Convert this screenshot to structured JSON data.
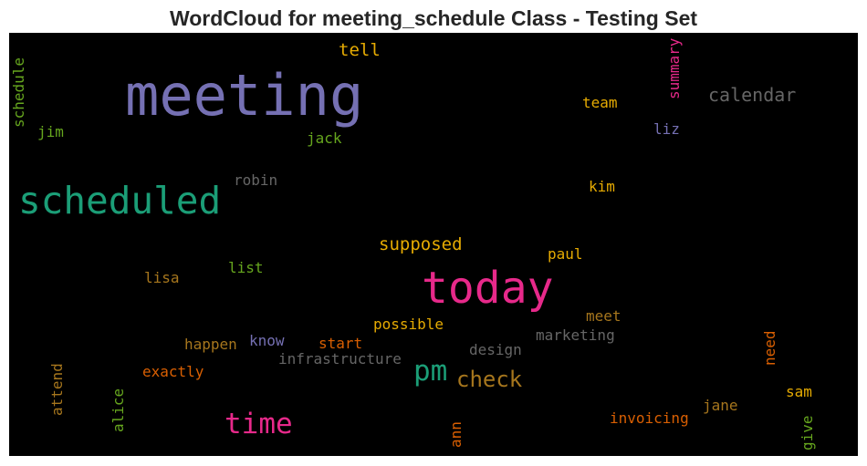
{
  "title": "WordCloud for meeting_schedule Class - Testing Set",
  "colors": {
    "purple": "#7570b3",
    "teal": "#1b9e77",
    "pink": "#e7298a",
    "orange": "#d95f02",
    "gold": "#e6ab02",
    "green": "#66a61e",
    "brown": "#a6761d",
    "gray": "#666666"
  },
  "words": [
    {
      "text": "meeting",
      "color": "#7570b3"
    },
    {
      "text": "scheduled",
      "color": "#1b9e77"
    },
    {
      "text": "today",
      "color": "#e7298a"
    },
    {
      "text": "time",
      "color": "#e7298a"
    },
    {
      "text": "pm",
      "color": "#1b9e77"
    },
    {
      "text": "check",
      "color": "#a6761d"
    },
    {
      "text": "calendar",
      "color": "#666666"
    },
    {
      "text": "supposed",
      "color": "#e6ab02"
    },
    {
      "text": "tell",
      "color": "#e6ab02"
    },
    {
      "text": "summary",
      "color": "#e7298a"
    },
    {
      "text": "team",
      "color": "#e6ab02"
    },
    {
      "text": "liz",
      "color": "#7570b3"
    },
    {
      "text": "schedule",
      "color": "#66a61e"
    },
    {
      "text": "jim",
      "color": "#66a61e"
    },
    {
      "text": "jack",
      "color": "#66a61e"
    },
    {
      "text": "robin",
      "color": "#666666"
    },
    {
      "text": "kim",
      "color": "#e6ab02"
    },
    {
      "text": "paul",
      "color": "#e6ab02"
    },
    {
      "text": "list",
      "color": "#66a61e"
    },
    {
      "text": "lisa",
      "color": "#a6761d"
    },
    {
      "text": "meet",
      "color": "#a6761d"
    },
    {
      "text": "possible",
      "color": "#e6ab02"
    },
    {
      "text": "marketing",
      "color": "#666666"
    },
    {
      "text": "happen",
      "color": "#a6761d"
    },
    {
      "text": "know",
      "color": "#7570b3"
    },
    {
      "text": "start",
      "color": "#d95f02"
    },
    {
      "text": "infrastructure",
      "color": "#666666"
    },
    {
      "text": "design",
      "color": "#666666"
    },
    {
      "text": "need",
      "color": "#d95f02"
    },
    {
      "text": "exactly",
      "color": "#d95f02"
    },
    {
      "text": "attend",
      "color": "#a6761d"
    },
    {
      "text": "alice",
      "color": "#66a61e"
    },
    {
      "text": "jane",
      "color": "#a6761d"
    },
    {
      "text": "sam",
      "color": "#e6ab02"
    },
    {
      "text": "invoicing",
      "color": "#d95f02"
    },
    {
      "text": "ann",
      "color": "#d95f02"
    },
    {
      "text": "give",
      "color": "#66a61e"
    }
  ]
}
